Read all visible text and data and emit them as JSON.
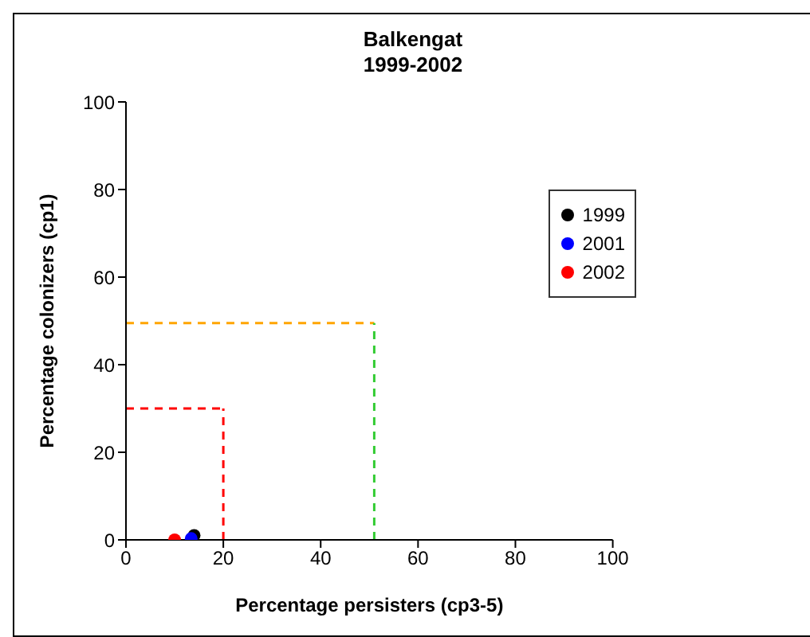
{
  "chart_data": {
    "type": "scatter",
    "title": "Balkengat\n1999-2002",
    "xlabel": "Percentage persisters (cp3-5)",
    "ylabel": "Percentage colonizers (cp1)",
    "xlim": [
      0,
      100
    ],
    "xticks": [
      0,
      20,
      40,
      60,
      80,
      100
    ],
    "ylim": [
      0,
      100
    ],
    "yticks": [
      0,
      20,
      40,
      60,
      80,
      100
    ],
    "grid": false,
    "legend": "right",
    "marker": "circle",
    "series": [
      {
        "name": "1999",
        "color": "#000000",
        "x": [
          14
        ],
        "values": [
          1
        ]
      },
      {
        "name": "2001",
        "color": "#0000ff",
        "x": [
          13.4
        ],
        "values": [
          0.3
        ]
      },
      {
        "name": "2002",
        "color": "#ff0000",
        "x": [
          10
        ],
        "values": [
          0
        ]
      },
      {
        "type": "line",
        "color": "#ffa500",
        "line_style": "dashed",
        "marker": "none",
        "x": [
          0,
          51
        ],
        "values": [
          49.5,
          49.5
        ]
      },
      {
        "type": "line",
        "color": "#33cc33",
        "line_style": "dashed",
        "marker": "none",
        "x": [
          51,
          51
        ],
        "values": [
          0,
          49.5
        ]
      },
      {
        "type": "line",
        "color": "#ff0000",
        "line_style": "dashed",
        "marker": "none",
        "x": [
          0,
          20
        ],
        "values": [
          30,
          30
        ]
      },
      {
        "type": "line",
        "color": "#ff0000",
        "line_style": "dashed",
        "marker": "none",
        "x": [
          20,
          20
        ],
        "values": [
          0,
          30
        ]
      }
    ]
  }
}
